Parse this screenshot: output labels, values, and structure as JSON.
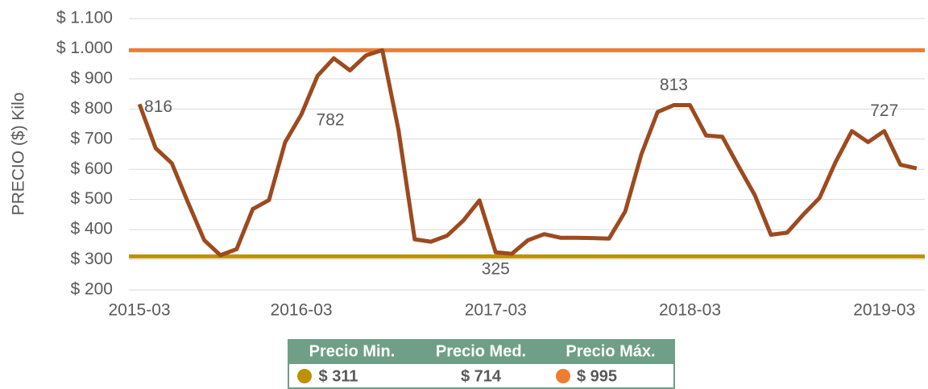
{
  "chart_data": {
    "type": "line",
    "y_label": "PRECIO ($) Kilo",
    "categories": [
      "2015-03",
      null,
      null,
      null,
      null,
      null,
      null,
      null,
      null,
      null,
      "2016-03",
      null,
      null,
      null,
      null,
      null,
      null,
      null,
      null,
      null,
      null,
      null,
      "2017-03",
      null,
      null,
      null,
      null,
      null,
      null,
      null,
      null,
      null,
      null,
      null,
      "2018-03",
      null,
      null,
      null,
      null,
      null,
      null,
      null,
      null,
      null,
      null,
      null,
      "2019-03",
      null,
      null
    ],
    "series": [
      {
        "color": "#9c4a1f",
        "values": [
          816,
          670,
          620,
          490,
          365,
          315,
          335,
          468,
          498,
          690,
          782,
          910,
          968,
          928,
          978,
          995,
          730,
          368,
          360,
          380,
          430,
          497,
          325,
          320,
          365,
          385,
          373,
          373,
          372,
          370,
          460,
          650,
          790,
          813,
          813,
          712,
          708,
          610,
          515,
          383,
          390,
          450,
          505,
          625,
          727,
          690,
          727,
          615,
          603
        ],
        "value_labels": [
          "816",
          null,
          null,
          null,
          null,
          null,
          null,
          null,
          null,
          null,
          "782",
          null,
          null,
          null,
          null,
          null,
          null,
          null,
          null,
          null,
          null,
          null,
          "325",
          null,
          null,
          null,
          null,
          null,
          null,
          null,
          null,
          null,
          null,
          "813",
          null,
          null,
          null,
          null,
          null,
          null,
          null,
          null,
          null,
          null,
          null,
          null,
          "727",
          null,
          null
        ]
      }
    ],
    "summary": [
      {
        "name": "Precio Min.",
        "value": 311,
        "label": "$ 311",
        "color": "#bf9000"
      },
      {
        "name": "Precio Med.",
        "value": 714,
        "label": "$ 714"
      },
      {
        "name": "Precio Máx.",
        "value": 995,
        "label": "$ 995",
        "color": "#ed7d31"
      }
    ],
    "ylim": [
      200,
      1100
    ],
    "yticks": [
      {
        "value": 200,
        "label": "$ 200"
      },
      {
        "value": 300,
        "label": "$ 300"
      },
      {
        "value": 400,
        "label": "$ 400"
      },
      {
        "value": 500,
        "label": "$ 500"
      },
      {
        "value": 600,
        "label": "$ 600"
      },
      {
        "value": 700,
        "label": "$ 700"
      },
      {
        "value": 800,
        "label": "$ 800"
      },
      {
        "value": 900,
        "label": "$ 900"
      },
      {
        "value": 1000,
        "label": "$ 1.000"
      },
      {
        "value": 1100,
        "label": "$ 1.100"
      }
    ],
    "grid": true,
    "legend_header_color": "#6f9f86"
  }
}
